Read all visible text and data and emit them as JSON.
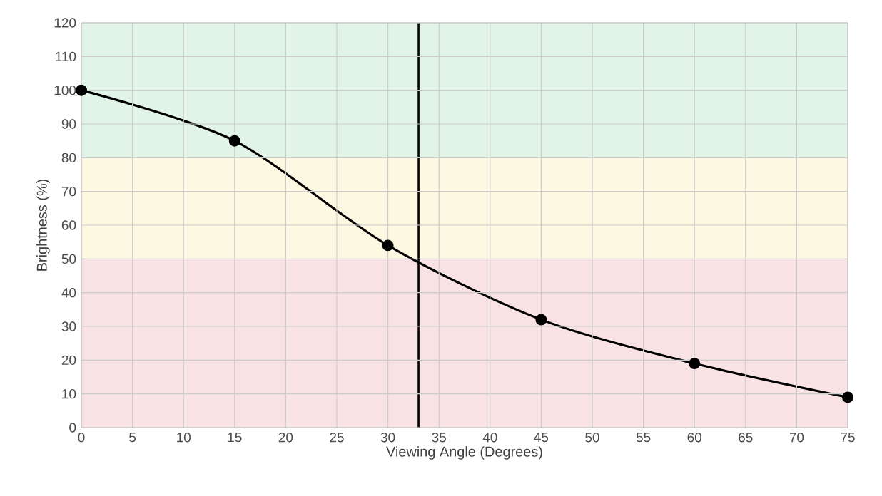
{
  "chart_data": {
    "type": "line",
    "xlabel": "Viewing Angle (Degrees)",
    "ylabel": "Brightness (%)",
    "x": [
      0,
      15,
      30,
      45,
      60,
      75
    ],
    "series": [
      {
        "color": "#000000",
        "values": [
          100,
          85,
          54,
          32,
          19,
          9
        ]
      }
    ],
    "xlim": [
      0,
      75
    ],
    "xticks": [
      0,
      5,
      10,
      15,
      20,
      25,
      30,
      35,
      40,
      45,
      50,
      55,
      60,
      65,
      70,
      75
    ],
    "ylim": [
      0,
      120
    ],
    "yticks": [
      0,
      10,
      20,
      30,
      40,
      50,
      60,
      70,
      80,
      90,
      100,
      110,
      120
    ],
    "grid": true,
    "marker": "circle",
    "line_style": "solid",
    "bands": [
      {
        "axis": "y",
        "from": 0,
        "to": 50,
        "color": "#f9e2e3"
      },
      {
        "axis": "y",
        "from": 50,
        "to": 80,
        "color": "#fdf8e2"
      },
      {
        "axis": "y",
        "from": 80,
        "to": 120,
        "color": "#e2f3e8"
      }
    ],
    "ref_lines": [
      {
        "axis": "x",
        "value": 33,
        "color": "#000000"
      }
    ]
  }
}
